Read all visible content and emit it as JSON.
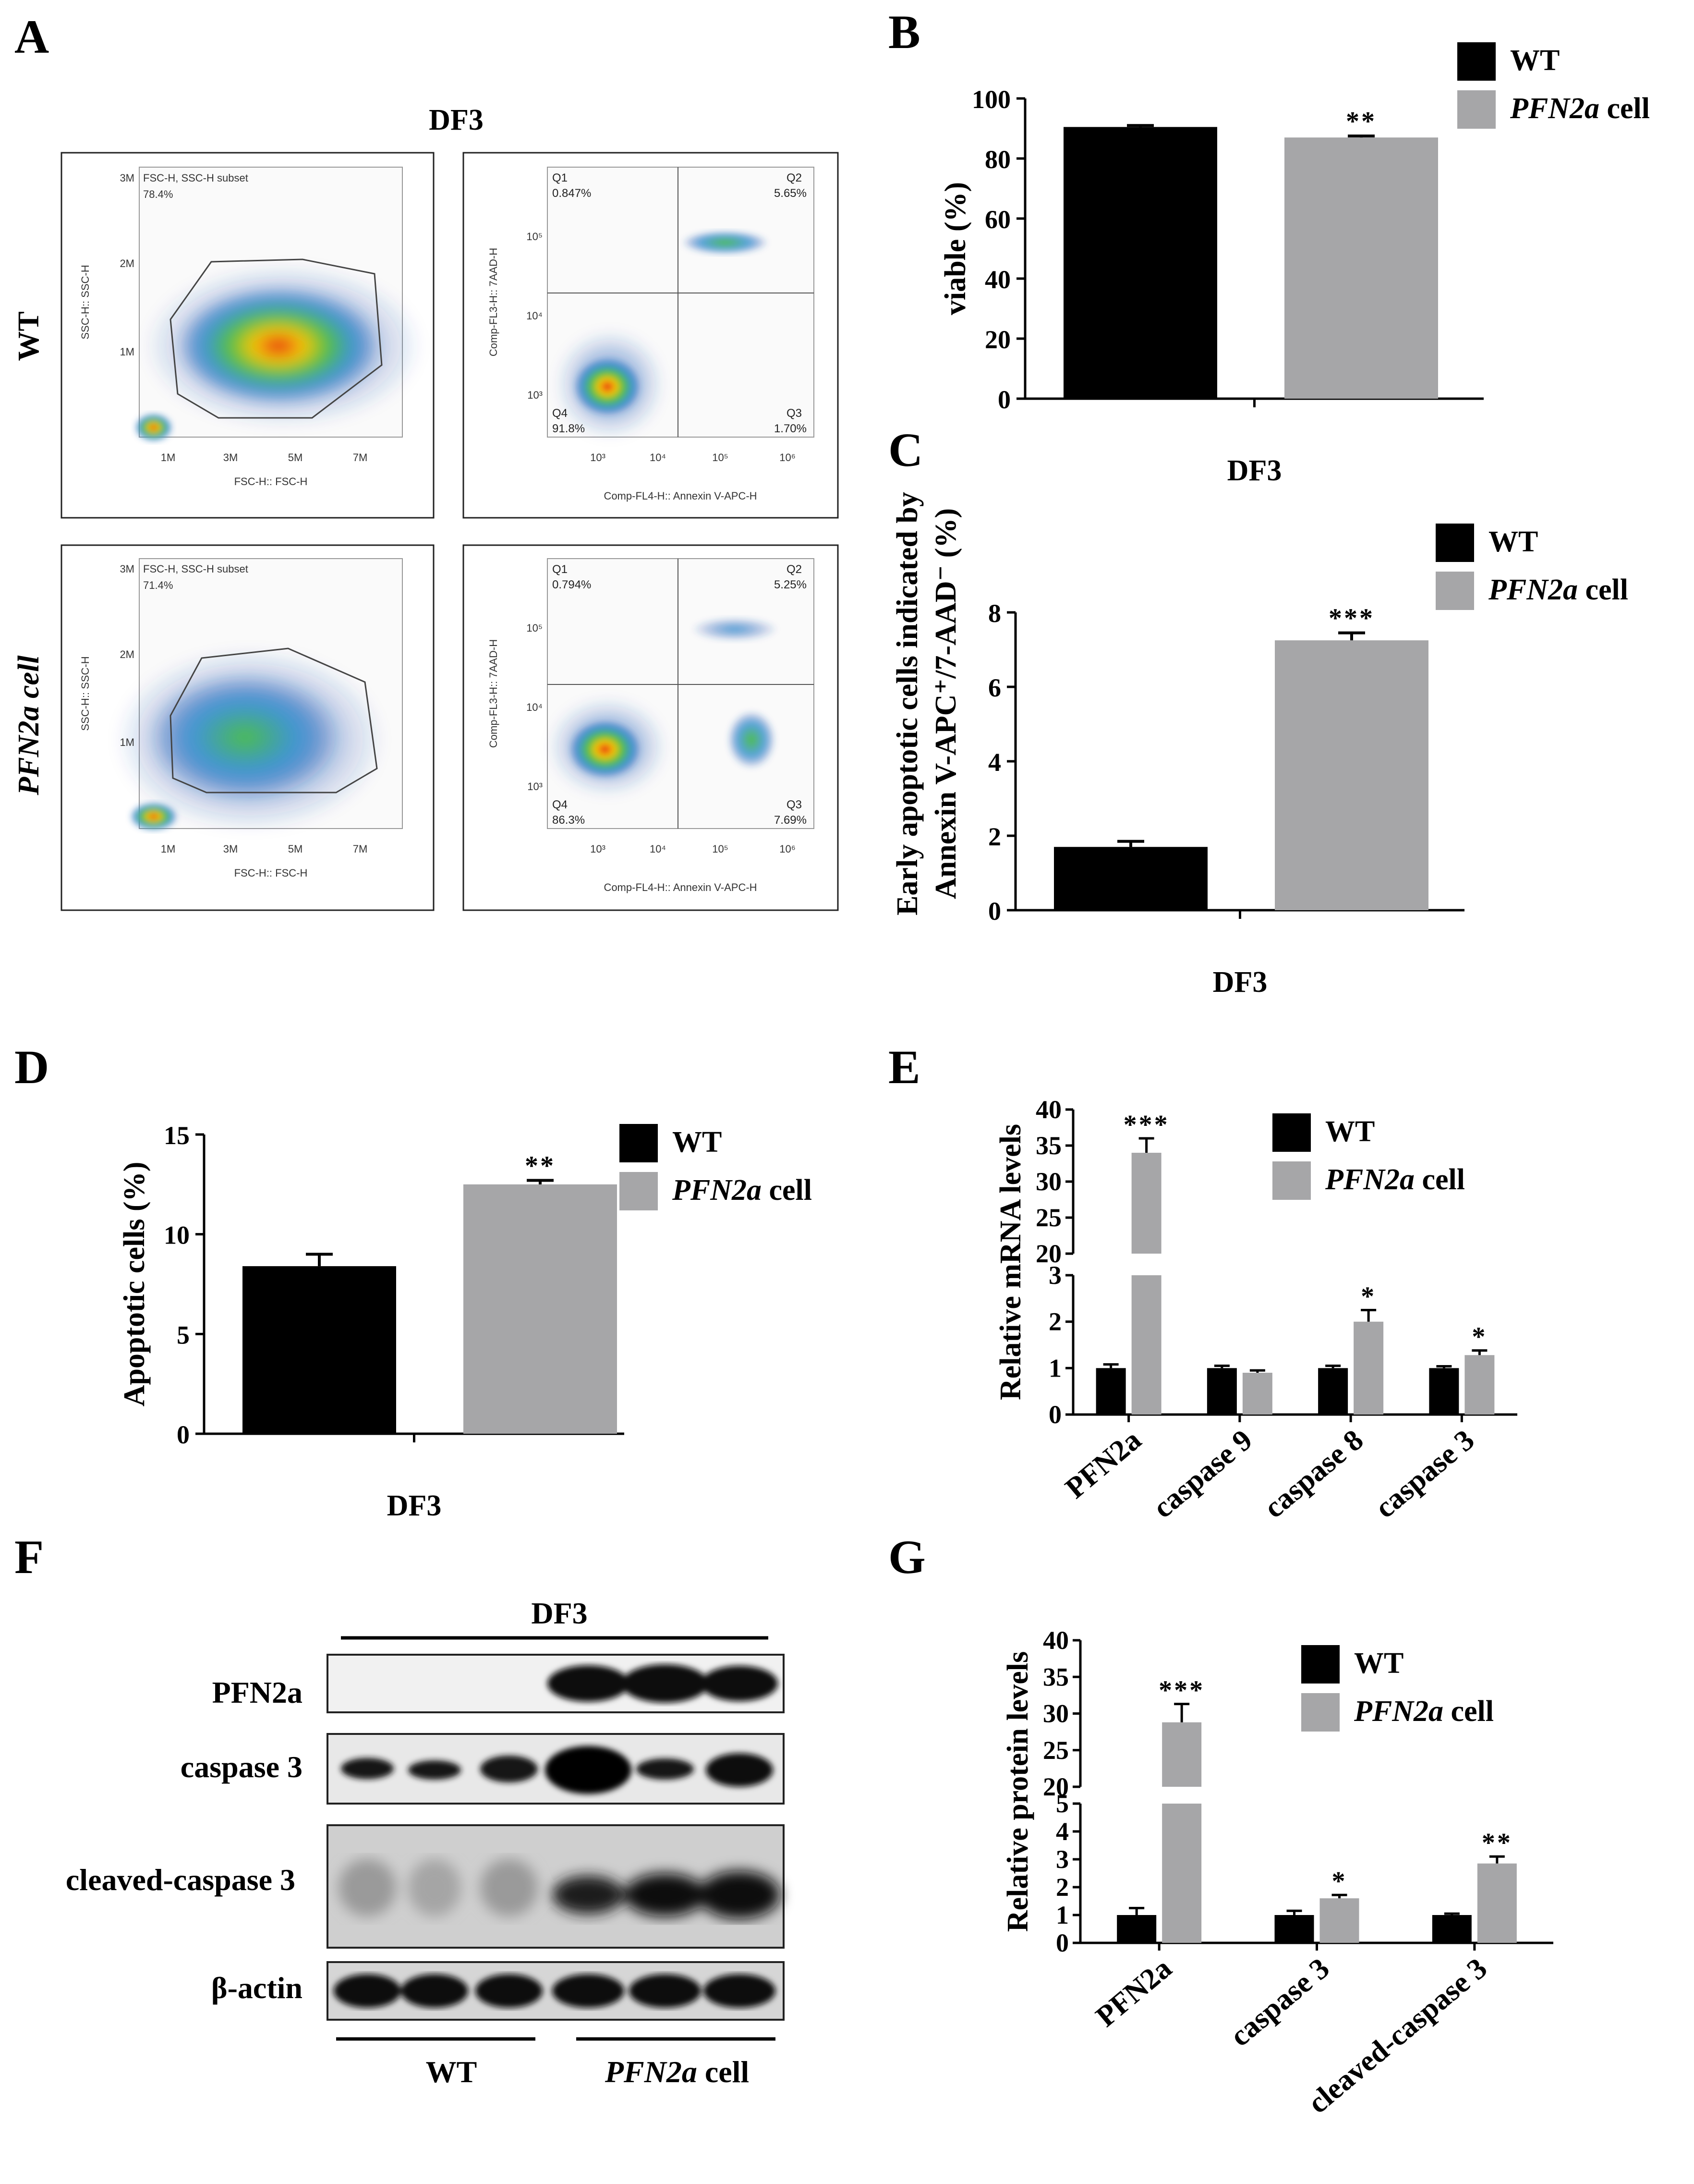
{
  "panels": {
    "A": {
      "label": "A",
      "title": "DF3",
      "row_labels": [
        "WT",
        "PFN2a cell"
      ],
      "rows": [
        {
          "name": "WT",
          "scatter": {
            "gate_label": "FSC-H, SSC-H subset",
            "gate_pct": "78.4%",
            "ylabel": "SSC-H:: SSC-H",
            "xlabel": "FSC-H:: FSC-H",
            "yticks": [
              "3M",
              "2M",
              "1M"
            ],
            "xticks": [
              "1M",
              "3M",
              "5M",
              "7M"
            ]
          },
          "quadrant": {
            "q1": "Q1",
            "q1_pct": "0.847%",
            "q2": "Q2",
            "q2_pct": "5.65%",
            "q3": "Q3",
            "q3_pct": "1.70%",
            "q4": "Q4",
            "q4_pct": "91.8%",
            "ylabel": "Comp-FL3-H:: 7AAD-H",
            "xlabel": "Comp-FL4-H:: Annexin V-APC-H",
            "yticks": [
              "10⁵",
              "10⁴",
              "10³"
            ],
            "xticks": [
              "10³",
              "10⁴",
              "10⁵",
              "10⁶"
            ]
          }
        },
        {
          "name": "PFN2a cell",
          "scatter": {
            "gate_label": "FSC-H, SSC-H subset",
            "gate_pct": "71.4%",
            "ylabel": "SSC-H:: SSC-H",
            "xlabel": "FSC-H:: FSC-H",
            "yticks": [
              "3M",
              "2M",
              "1M"
            ],
            "xticks": [
              "1M",
              "3M",
              "5M",
              "7M"
            ]
          },
          "quadrant": {
            "q1": "Q1",
            "q1_pct": "0.794%",
            "q2": "Q2",
            "q2_pct": "5.25%",
            "q3": "Q3",
            "q3_pct": "7.69%",
            "q4": "Q4",
            "q4_pct": "86.3%",
            "ylabel": "Comp-FL3-H:: 7AAD-H",
            "xlabel": "Comp-FL4-H:: Annexin V-APC-H",
            "yticks": [
              "10⁵",
              "10⁴",
              "10³"
            ],
            "xticks": [
              "10³",
              "10⁴",
              "10⁵",
              "10⁶"
            ]
          }
        }
      ]
    },
    "F": {
      "label": "F",
      "title": "DF3",
      "rows": [
        "PFN2a",
        "caspase 3",
        "cleaved-caspase 3",
        "β-actin"
      ],
      "group_wt": "WT",
      "group_pfn": "PFN2a",
      "group_pfn_suffix": " cell"
    }
  },
  "legend": {
    "wt": "WT",
    "pfn_italic": "PFN2a",
    "pfn_suffix": " cell"
  },
  "colors": {
    "wt": "#000000",
    "pfn2a": "#a6a6a8"
  },
  "chart_data": [
    {
      "panel": "B",
      "type": "bar",
      "xlabel": "DF3",
      "ylabel": "viable (%)",
      "ylim": [
        0,
        100
      ],
      "yticks": [
        "0",
        "20",
        "40",
        "60",
        "80",
        "100"
      ],
      "series": [
        {
          "name": "WT",
          "values": [
            90.5
          ],
          "errors": [
            0.5
          ]
        },
        {
          "name": "PFN2a cell",
          "values": [
            87.0
          ],
          "errors": [
            0.5
          ],
          "sig": [
            "**"
          ]
        }
      ]
    },
    {
      "panel": "C",
      "type": "bar",
      "xlabel": "DF3",
      "ylabel_line1": "Early apoptotic cells indicated by",
      "ylabel_line2": "Annexin V-APC⁺/7-AAD⁻ (%)",
      "ylim": [
        0,
        8
      ],
      "yticks": [
        "0",
        "2",
        "4",
        "6",
        "8"
      ],
      "series": [
        {
          "name": "WT",
          "values": [
            1.7
          ],
          "errors": [
            0.15
          ]
        },
        {
          "name": "PFN2a cell",
          "values": [
            7.25
          ],
          "errors": [
            0.2
          ],
          "sig": [
            "***"
          ]
        }
      ]
    },
    {
      "panel": "D",
      "type": "bar",
      "xlabel": "DF3",
      "ylabel": "Apoptotic cells (%)",
      "ylim": [
        0,
        15
      ],
      "yticks": [
        "0",
        "5",
        "10",
        "15"
      ],
      "series": [
        {
          "name": "WT",
          "values": [
            8.4
          ],
          "errors": [
            0.6
          ]
        },
        {
          "name": "PFN2a cell",
          "values": [
            12.5
          ],
          "errors": [
            0.2
          ],
          "sig": [
            "**"
          ]
        }
      ]
    },
    {
      "panel": "E",
      "type": "bar",
      "ylabel": "Relative mRNA levels",
      "categories": [
        "PFN2a",
        "caspase 9",
        "caspase 8",
        "caspase 3"
      ],
      "axis_break": [
        3,
        20
      ],
      "yticks_low": [
        "0",
        "1",
        "2",
        "3"
      ],
      "yticks_high": [
        "20",
        "25",
        "30",
        "35",
        "40"
      ],
      "series": [
        {
          "name": "WT",
          "values": [
            1.0,
            1.0,
            1.0,
            1.0
          ],
          "errors": [
            0.08,
            0.05,
            0.05,
            0.04
          ]
        },
        {
          "name": "PFN2a cell",
          "values": [
            34.0,
            0.9,
            2.0,
            1.28
          ],
          "errors": [
            2.0,
            0.05,
            0.25,
            0.1
          ],
          "sig": [
            "***",
            "",
            "*",
            "*"
          ]
        }
      ]
    },
    {
      "panel": "G",
      "type": "bar",
      "ylabel": "Relative protein levels",
      "categories": [
        "PFN2a",
        "caspase 3",
        "cleaved-caspase 3"
      ],
      "axis_break": [
        5,
        20
      ],
      "yticks_low": [
        "0",
        "1",
        "2",
        "3",
        "4",
        "5"
      ],
      "yticks_high": [
        "20",
        "25",
        "30",
        "35",
        "40"
      ],
      "series": [
        {
          "name": "WT",
          "values": [
            1.0,
            1.0,
            1.0
          ],
          "errors": [
            0.25,
            0.15,
            0.05
          ]
        },
        {
          "name": "PFN2a cell",
          "values": [
            28.8,
            1.6,
            2.85
          ],
          "errors": [
            2.5,
            0.12,
            0.25
          ],
          "sig": [
            "***",
            "*",
            "**"
          ]
        }
      ]
    }
  ]
}
